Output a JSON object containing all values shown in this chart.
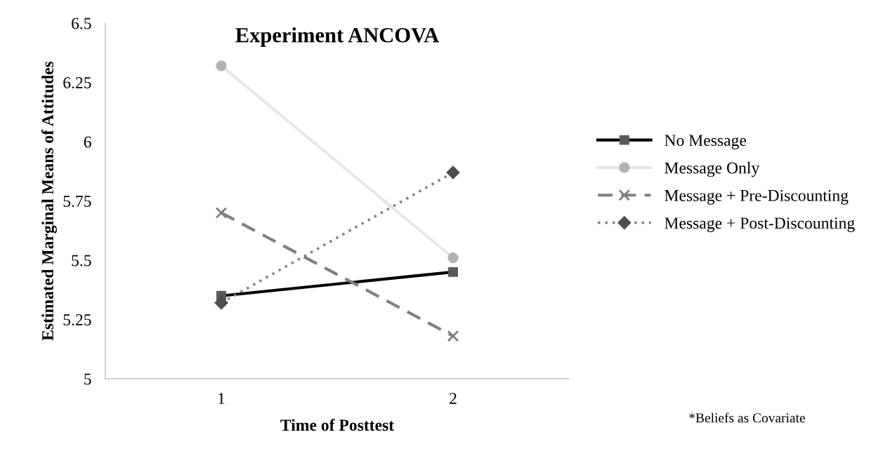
{
  "chart_data": {
    "type": "line",
    "title": "Experiment ANCOVA",
    "xlabel": "Time of Posttest",
    "ylabel": "Estimated Marginal Means of Attitudes",
    "categories": [
      "1",
      "2"
    ],
    "series": [
      {
        "name": "No Message",
        "color": "#000000",
        "colors": [
          "#595959",
          "#595959"
        ],
        "marker": "square",
        "line_style": "solid",
        "values": [
          5.35,
          5.45
        ]
      },
      {
        "name": "Message Only",
        "color": "#e6e6e6",
        "colors": [
          "#b3b3b3",
          "#b3b3b3"
        ],
        "marker": "circle",
        "line_style": "solid",
        "values": [
          6.32,
          5.51
        ]
      },
      {
        "name": "Message + Pre-Discounting",
        "color": "#7f7f7f",
        "colors": [
          "#7f7f7f",
          "#7f7f7f"
        ],
        "marker": "cross",
        "line_style": "dashed",
        "values": [
          5.7,
          5.18
        ]
      },
      {
        "name": "Message + Post-Discounting",
        "color": "#7f7f7f",
        "colors": [
          "#4d4d4d",
          "#4d4d4d"
        ],
        "marker": "diamond",
        "line_style": "dotted",
        "values": [
          5.32,
          5.87
        ]
      }
    ],
    "ylim": [
      5,
      6.5
    ],
    "yticks": [
      5,
      5.25,
      5.5,
      5.75,
      6,
      6.25,
      6.5
    ],
    "grid": false,
    "legend": "right",
    "annotations": [
      "*Beliefs as Covariate"
    ]
  }
}
